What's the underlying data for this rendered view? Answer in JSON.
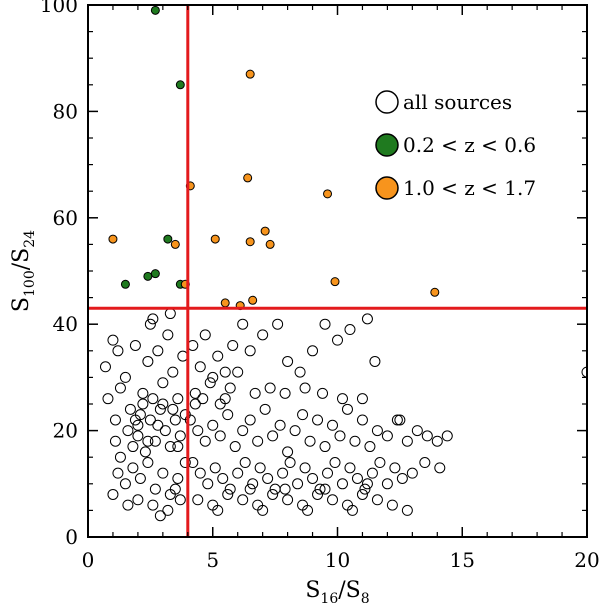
{
  "chart_data": {
    "type": "scatter",
    "title": "",
    "xlabel": {
      "main": "S",
      "sub_num": "16",
      "slash": "/S",
      "sub_den": "8"
    },
    "ylabel": {
      "main": "S",
      "sub_num": "100",
      "slash": "/S",
      "sub_den": "24"
    },
    "xlim": [
      0,
      20
    ],
    "ylim": [
      0,
      100
    ],
    "x_ticks": [
      0,
      5,
      10,
      15,
      20
    ],
    "y_ticks": [
      0,
      20,
      40,
      60,
      80,
      100
    ],
    "x_tick_labels": [
      "0",
      "5",
      "10",
      "15",
      "20"
    ],
    "y_tick_labels": [
      "0",
      "20",
      "40",
      "60",
      "80",
      "100"
    ],
    "grid": false,
    "legend_position": "top-right",
    "reference_lines": [
      {
        "orientation": "vertical",
        "value": 4,
        "color": "#e31a1c"
      },
      {
        "orientation": "horizontal",
        "value": 43,
        "color": "#e31a1c"
      }
    ],
    "series": [
      {
        "name": "all sources",
        "marker": "open-circle",
        "color": "#000000",
        "points": [
          [
            1.0,
            37
          ],
          [
            0.7,
            32
          ],
          [
            0.8,
            26
          ],
          [
            1.1,
            22
          ],
          [
            1.3,
            28
          ],
          [
            1.2,
            35
          ],
          [
            1.5,
            30
          ],
          [
            1.7,
            24
          ],
          [
            1.9,
            36
          ],
          [
            2.0,
            21
          ],
          [
            2.2,
            27
          ],
          [
            2.4,
            33
          ],
          [
            2.6,
            41
          ],
          [
            2.8,
            35
          ],
          [
            3.0,
            29
          ],
          [
            3.2,
            38
          ],
          [
            3.4,
            31
          ],
          [
            3.6,
            26
          ],
          [
            3.8,
            34
          ],
          [
            3.3,
            42
          ],
          [
            2.5,
            40
          ],
          [
            1.1,
            18
          ],
          [
            1.3,
            15
          ],
          [
            1.6,
            20
          ],
          [
            1.8,
            17
          ],
          [
            2.0,
            19
          ],
          [
            2.1,
            23
          ],
          [
            2.3,
            16
          ],
          [
            2.5,
            22
          ],
          [
            2.7,
            18
          ],
          [
            2.9,
            24
          ],
          [
            3.1,
            20
          ],
          [
            3.3,
            17
          ],
          [
            3.5,
            22
          ],
          [
            3.7,
            19
          ],
          [
            3.9,
            23
          ],
          [
            2.2,
            25
          ],
          [
            2.6,
            26
          ],
          [
            3.0,
            25
          ],
          [
            3.4,
            24
          ],
          [
            2.8,
            21
          ],
          [
            2.4,
            18
          ],
          [
            1.9,
            22
          ],
          [
            3.6,
            17
          ],
          [
            1.2,
            12
          ],
          [
            1.5,
            10
          ],
          [
            1.8,
            13
          ],
          [
            2.1,
            11
          ],
          [
            2.4,
            14
          ],
          [
            2.7,
            9
          ],
          [
            3.0,
            12
          ],
          [
            3.3,
            8
          ],
          [
            3.6,
            11
          ],
          [
            3.9,
            14
          ],
          [
            2.0,
            7
          ],
          [
            2.6,
            6
          ],
          [
            3.2,
            5
          ],
          [
            3.7,
            7
          ],
          [
            1.6,
            6
          ],
          [
            2.9,
            4
          ],
          [
            3.5,
            9
          ],
          [
            1.0,
            8
          ],
          [
            4.2,
            36
          ],
          [
            4.5,
            32
          ],
          [
            4.7,
            38
          ],
          [
            4.9,
            29
          ],
          [
            5.2,
            34
          ],
          [
            5.5,
            31
          ],
          [
            5.8,
            36
          ],
          [
            6.2,
            40
          ],
          [
            6.5,
            35
          ],
          [
            7.0,
            38
          ],
          [
            7.6,
            40
          ],
          [
            8.0,
            33
          ],
          [
            8.5,
            31
          ],
          [
            9.0,
            35
          ],
          [
            9.5,
            40
          ],
          [
            10.0,
            37
          ],
          [
            10.5,
            39
          ],
          [
            11.2,
            41
          ],
          [
            11.5,
            33
          ],
          [
            5.0,
            30
          ],
          [
            6.0,
            31
          ],
          [
            4.3,
            27
          ],
          [
            4.6,
            26
          ],
          [
            5.3,
            25
          ],
          [
            5.7,
            28
          ],
          [
            4.1,
            22
          ],
          [
            4.4,
            20
          ],
          [
            4.7,
            18
          ],
          [
            5.0,
            21
          ],
          [
            5.3,
            19
          ],
          [
            5.6,
            23
          ],
          [
            5.9,
            17
          ],
          [
            6.2,
            20
          ],
          [
            6.5,
            22
          ],
          [
            6.8,
            18
          ],
          [
            7.1,
            24
          ],
          [
            7.4,
            19
          ],
          [
            7.7,
            21
          ],
          [
            8.0,
            16
          ],
          [
            8.3,
            20
          ],
          [
            8.6,
            23
          ],
          [
            8.9,
            18
          ],
          [
            9.2,
            22
          ],
          [
            9.5,
            17
          ],
          [
            9.8,
            21
          ],
          [
            10.1,
            19
          ],
          [
            10.4,
            24
          ],
          [
            10.7,
            18
          ],
          [
            11.0,
            22
          ],
          [
            11.3,
            17
          ],
          [
            11.6,
            20
          ],
          [
            12.0,
            19
          ],
          [
            12.4,
            22
          ],
          [
            12.8,
            18
          ],
          [
            13.2,
            20
          ],
          [
            13.6,
            19
          ],
          [
            14.0,
            18
          ],
          [
            14.4,
            19
          ],
          [
            4.2,
            14
          ],
          [
            4.5,
            12
          ],
          [
            4.8,
            10
          ],
          [
            5.1,
            13
          ],
          [
            5.4,
            11
          ],
          [
            5.7,
            9
          ],
          [
            6.0,
            12
          ],
          [
            6.3,
            14
          ],
          [
            6.6,
            10
          ],
          [
            6.9,
            13
          ],
          [
            7.2,
            11
          ],
          [
            7.5,
            9
          ],
          [
            7.8,
            12
          ],
          [
            8.1,
            14
          ],
          [
            8.4,
            10
          ],
          [
            8.7,
            13
          ],
          [
            9.0,
            11
          ],
          [
            9.3,
            9
          ],
          [
            9.6,
            12
          ],
          [
            9.9,
            14
          ],
          [
            10.2,
            10
          ],
          [
            10.5,
            13
          ],
          [
            10.8,
            11
          ],
          [
            11.1,
            9
          ],
          [
            11.4,
            12
          ],
          [
            11.7,
            14
          ],
          [
            12.0,
            10
          ],
          [
            12.3,
            13
          ],
          [
            12.6,
            11
          ],
          [
            13.0,
            12
          ],
          [
            13.5,
            14
          ],
          [
            14.1,
            13
          ],
          [
            4.4,
            7
          ],
          [
            5.0,
            6
          ],
          [
            5.6,
            8
          ],
          [
            6.2,
            7
          ],
          [
            6.8,
            6
          ],
          [
            7.4,
            8
          ],
          [
            8.0,
            7
          ],
          [
            8.6,
            6
          ],
          [
            9.2,
            8
          ],
          [
            9.8,
            7
          ],
          [
            10.4,
            6
          ],
          [
            11.0,
            8
          ],
          [
            11.6,
            7
          ],
          [
            12.2,
            6
          ],
          [
            12.8,
            5
          ],
          [
            5.2,
            5
          ],
          [
            7.0,
            5
          ],
          [
            8.8,
            5
          ],
          [
            10.6,
            5
          ],
          [
            6.5,
            9
          ],
          [
            7.9,
            9
          ],
          [
            9.5,
            9
          ],
          [
            11.2,
            10
          ],
          [
            4.3,
            25
          ],
          [
            5.5,
            26
          ],
          [
            6.7,
            27
          ],
          [
            7.3,
            28
          ],
          [
            7.9,
            27
          ],
          [
            8.7,
            28
          ],
          [
            9.4,
            27
          ],
          [
            10.2,
            26
          ],
          [
            11.0,
            26
          ],
          [
            12.5,
            22
          ],
          [
            20.0,
            31
          ]
        ]
      },
      {
        "name": "0.2 < z < 0.6",
        "marker": "filled-circle",
        "color": "#1f7a1f",
        "points": [
          [
            2.7,
            99
          ],
          [
            3.7,
            85
          ],
          [
            3.2,
            56
          ],
          [
            1.5,
            47.5
          ],
          [
            2.4,
            49
          ],
          [
            2.7,
            49.5
          ],
          [
            3.7,
            47.5
          ]
        ]
      },
      {
        "name": "1.0 < z < 1.7",
        "marker": "filled-circle",
        "color": "#f7941d",
        "points": [
          [
            6.5,
            87
          ],
          [
            4.1,
            66
          ],
          [
            6.4,
            67.5
          ],
          [
            9.6,
            64.5
          ],
          [
            1.0,
            56
          ],
          [
            3.5,
            55
          ],
          [
            5.1,
            56
          ],
          [
            6.5,
            55.5
          ],
          [
            7.1,
            57.5
          ],
          [
            7.3,
            55
          ],
          [
            3.9,
            47.5
          ],
          [
            5.5,
            44
          ],
          [
            6.1,
            43.5
          ],
          [
            6.6,
            44.5
          ],
          [
            9.9,
            48
          ],
          [
            13.9,
            46
          ]
        ]
      }
    ]
  }
}
